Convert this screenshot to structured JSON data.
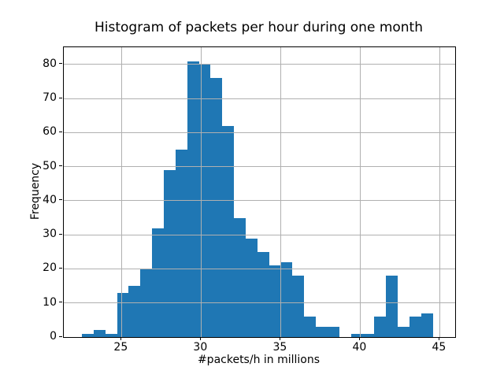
{
  "chart_data": {
    "type": "bar",
    "subtype": "histogram",
    "title": "Histogram of packets per hour during one month",
    "xlabel": "#packets/h in millions",
    "ylabel": "Frequency",
    "bins": 30,
    "bin_start": 22.51,
    "bin_width": 0.735,
    "values": [
      1,
      2,
      1,
      13,
      15,
      20,
      32,
      49,
      55,
      81,
      80,
      76,
      62,
      35,
      29,
      25,
      21,
      22,
      18,
      6,
      3,
      3,
      0,
      1,
      1,
      6,
      18,
      3,
      6,
      7
    ],
    "xticks": [
      25,
      30,
      35,
      40,
      45
    ],
    "yticks": [
      0,
      10,
      20,
      30,
      40,
      50,
      60,
      70,
      80
    ],
    "xlim": [
      21.37,
      45.97
    ],
    "ylim": [
      0,
      85.05
    ],
    "grid": true,
    "grid_on_top": true,
    "bar_color": "#1f77b4",
    "grid_color": "#b0b0b0",
    "legend_position": "none"
  }
}
